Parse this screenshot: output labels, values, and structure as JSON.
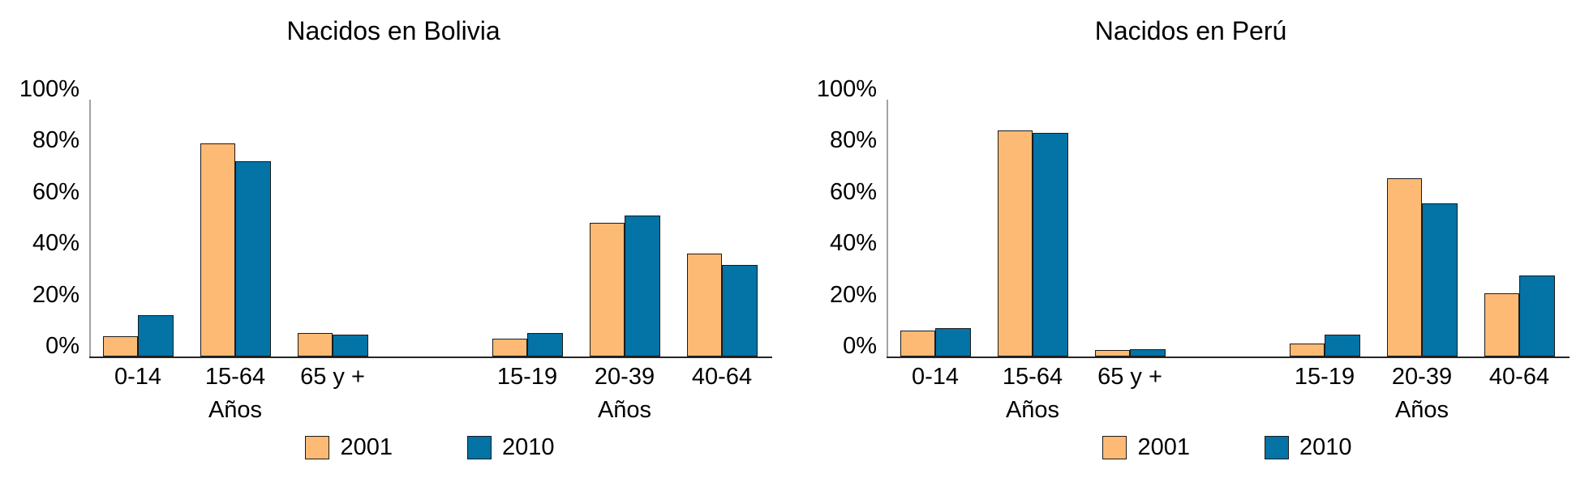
{
  "page_background": "#ffffff",
  "series_colors": {
    "y2001": "#fcba74",
    "y2010": "#0473a6"
  },
  "chart_data": [
    {
      "type": "bar",
      "title": "Nacidos en Bolivia",
      "xlabel": "Años",
      "ylabel": "",
      "ylim": [
        0,
        100
      ],
      "grid": false,
      "legend_position": "bottom",
      "y_tick_values": [
        0,
        20,
        40,
        60,
        80,
        100
      ],
      "y_tick_labels": [
        "0%",
        "20%",
        "40%",
        "60%",
        "80%",
        "100%"
      ],
      "categories": [
        "0-14",
        "15-64",
        "65 y +",
        "",
        "15-19",
        "20-39",
        "40-64"
      ],
      "group_axis_labels": [
        {
          "label": "Años",
          "slot": 1
        },
        {
          "label": "Años",
          "slot": 5
        }
      ],
      "series": [
        {
          "name": "2001",
          "color": "#fcba74",
          "values": [
            8,
            83,
            9,
            null,
            7,
            52,
            40
          ]
        },
        {
          "name": "2010",
          "color": "#0473a6",
          "values": [
            16,
            76,
            8.5,
            null,
            9,
            55,
            35.5
          ]
        }
      ]
    },
    {
      "type": "bar",
      "title": "Nacidos en Perú",
      "xlabel": "Años",
      "ylabel": "",
      "ylim": [
        0,
        100
      ],
      "grid": false,
      "legend_position": "bottom",
      "y_tick_values": [
        0,
        20,
        40,
        60,
        80,
        100
      ],
      "y_tick_labels": [
        "0%",
        "20%",
        "40%",
        "60%",
        "80%",
        "100%"
      ],
      "categories": [
        "0-14",
        "15-64",
        "65 y +",
        "",
        "15-19",
        "20-39",
        "40-64"
      ],
      "group_axis_labels": [
        {
          "label": "Años",
          "slot": 1
        },
        {
          "label": "Años",
          "slot": 5
        }
      ],
      "series": [
        {
          "name": "2001",
          "color": "#fcba74",
          "values": [
            10,
            88,
            2.5,
            null,
            5,
            69.5,
            24.5
          ]
        },
        {
          "name": "2010",
          "color": "#0473a6",
          "values": [
            11,
            87,
            3,
            null,
            8.5,
            59.5,
            31.5
          ]
        }
      ]
    }
  ]
}
